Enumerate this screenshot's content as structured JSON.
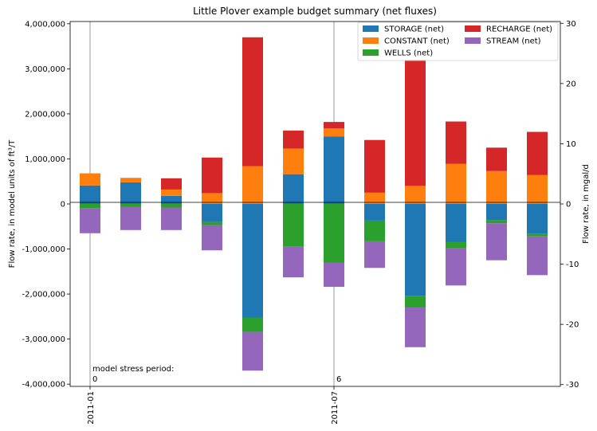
{
  "chart_data": {
    "type": "bar",
    "stacked": true,
    "title": "Little Plover example budget summary (net fluxes)",
    "ylabel_left": "Flow rate, in model units of ft³/T",
    "ylabel_right": "Flow rate, in mgal/d",
    "ylim_left": [
      -4050000,
      4050000
    ],
    "ylim_right": [
      -30.3,
      30.3
    ],
    "yticks_left": [
      "4,000,000",
      "3,000,000",
      "2,000,000",
      "1,000,000",
      "0",
      "-1,000,000",
      "-2,000,000",
      "-3,000,000",
      "-4,000,000"
    ],
    "yticks_right": [
      "30",
      "20",
      "10",
      "0",
      "-10",
      "-20",
      "-30"
    ],
    "xtick_labels": [
      "2011-01",
      "2011-07"
    ],
    "stress_period_annotation": "model stress period:",
    "stress_period_labels": [
      "0",
      "6"
    ],
    "legend_position": "top-right",
    "grid": false,
    "categories": [
      "2011-01",
      "2011-02",
      "2011-03",
      "2011-04",
      "2011-05",
      "2011-06",
      "2011-07",
      "2011-08",
      "2011-09",
      "2011-10",
      "2011-11",
      "2011-12"
    ],
    "series": [
      {
        "name": "STORAGE (net)",
        "color": "#1f77b4",
        "values": [
          410000,
          480000,
          180000,
          -400000,
          -2520000,
          660000,
          1500000,
          -370000,
          -2040000,
          -840000,
          -360000,
          -660000
        ]
      },
      {
        "name": "CONSTANT (net)",
        "color": "#ff7f0e",
        "values": [
          270000,
          100000,
          140000,
          240000,
          840000,
          570000,
          180000,
          250000,
          400000,
          890000,
          730000,
          640000
        ]
      },
      {
        "name": "WELLS (net)",
        "color": "#2ca02c",
        "values": [
          -90000,
          -70000,
          -80000,
          -70000,
          -320000,
          -950000,
          -1300000,
          -460000,
          -260000,
          -140000,
          -70000,
          -60000
        ]
      },
      {
        "name": "RECHARGE (net)",
        "color": "#d62728",
        "values": [
          0,
          0,
          250000,
          790000,
          2860000,
          400000,
          140000,
          1170000,
          2800000,
          940000,
          520000,
          960000
        ]
      },
      {
        "name": "STREAM (net)",
        "color": "#9467bd",
        "values": [
          -560000,
          -510000,
          -500000,
          -560000,
          -860000,
          -680000,
          -540000,
          -590000,
          -880000,
          -830000,
          -820000,
          -860000
        ]
      }
    ]
  }
}
